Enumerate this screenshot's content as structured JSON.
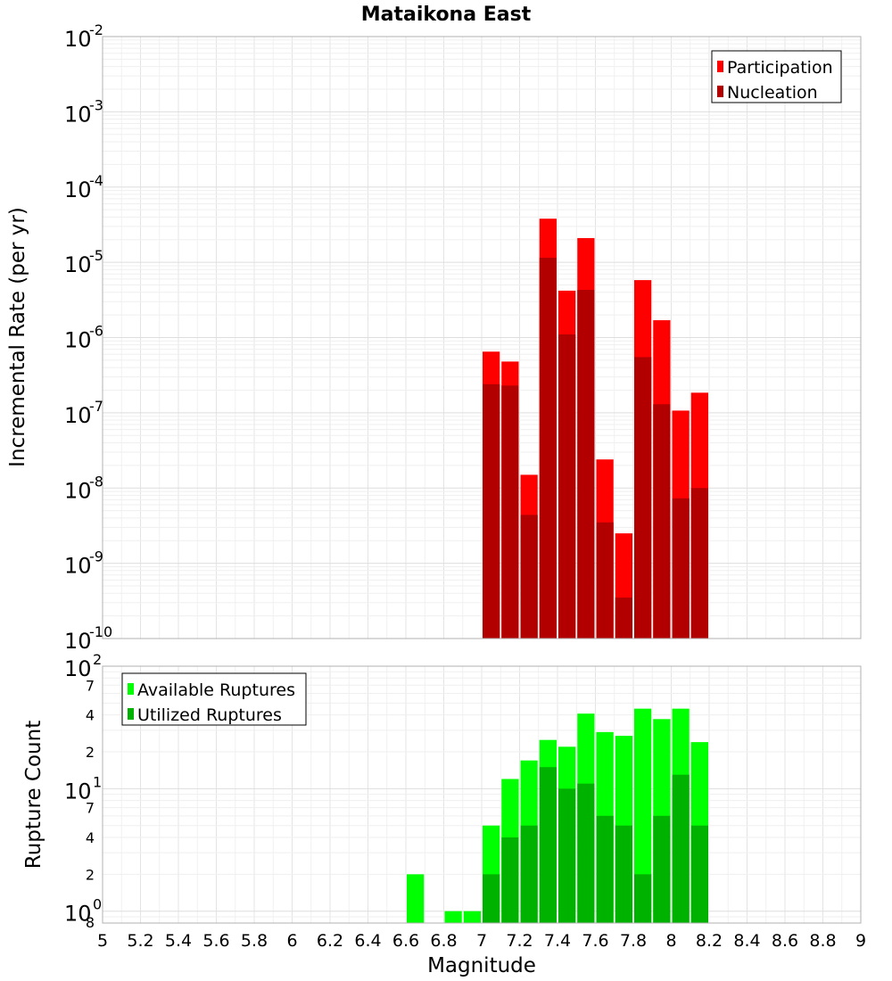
{
  "title": "Mataikona East",
  "xlabel": "Magnitude",
  "x_ticks": [
    "5",
    "5.2",
    "5.4",
    "5.6",
    "5.8",
    "6",
    "6.2",
    "6.4",
    "6.6",
    "6.8",
    "7",
    "7.2",
    "7.4",
    "7.6",
    "7.8",
    "8",
    "8.2",
    "8.4",
    "8.6",
    "8.8",
    "9"
  ],
  "colors": {
    "participation": "#ff0000",
    "nucleation": "#b20000",
    "available": "#00ff00",
    "utilized": "#00b200"
  },
  "chart_data": [
    {
      "type": "bar",
      "title": "Mataikona East",
      "xlabel": "Magnitude",
      "ylabel": "Incremental Rate (per yr)",
      "yscale": "log",
      "xlim": [
        5,
        9
      ],
      "ylim": [
        1e-10,
        0.01
      ],
      "y_tick_bases": [
        "10",
        "10",
        "10",
        "10",
        "10",
        "10",
        "10",
        "10",
        "10"
      ],
      "y_tick_exps": [
        "-10",
        "-9",
        "-8",
        "-7",
        "-6",
        "-5",
        "-4",
        "-3",
        "-2"
      ],
      "bin_width": 0.1,
      "x": [
        7.05,
        7.15,
        7.25,
        7.35,
        7.45,
        7.55,
        7.65,
        7.75,
        7.85,
        7.95,
        8.05,
        8.15
      ],
      "legend_position": "top-right",
      "series": [
        {
          "name": "Participation",
          "color_key": "participation",
          "values": [
            6.5e-07,
            4.8e-07,
            1.5e-08,
            3.8e-05,
            4.2e-06,
            2.1e-05,
            2.4e-08,
            2.5e-09,
            5.8e-06,
            1.7e-06,
            1.07e-07,
            1.85e-07
          ]
        },
        {
          "name": "Nucleation",
          "color_key": "nucleation",
          "values": [
            2.4e-07,
            2.3e-07,
            4.4e-09,
            1.15e-05,
            1.1e-06,
            4.3e-06,
            3.5e-09,
            3.5e-10,
            5.5e-07,
            1.3e-07,
            7.3e-09,
            1e-08
          ]
        }
      ]
    },
    {
      "type": "bar",
      "xlabel": "Magnitude",
      "ylabel": "Rupture Count",
      "yscale": "log",
      "xlim": [
        5,
        9
      ],
      "ylim": [
        0.8,
        100
      ],
      "y_major_bases": [
        "10",
        "10",
        "10"
      ],
      "y_major_exps": [
        "0",
        "1",
        "2"
      ],
      "y_minor_labels": [
        "8",
        "2",
        "4",
        "7",
        "2",
        "4",
        "7"
      ],
      "bin_width": 0.1,
      "x": [
        6.65,
        6.85,
        6.95,
        7.05,
        7.15,
        7.25,
        7.35,
        7.45,
        7.55,
        7.65,
        7.75,
        7.85,
        7.95,
        8.05,
        8.15
      ],
      "legend_position": "top-left",
      "series": [
        {
          "name": "Available Ruptures",
          "color_key": "available",
          "values": [
            2,
            1,
            1,
            5,
            12,
            17,
            25,
            22,
            41,
            29,
            27,
            45,
            37,
            45,
            24
          ]
        },
        {
          "name": "Utilized Ruptures",
          "color_key": "utilized",
          "values": [
            0,
            0,
            0,
            2,
            4,
            5,
            15,
            10,
            11,
            6,
            5,
            2,
            6,
            13,
            5
          ]
        }
      ]
    }
  ]
}
